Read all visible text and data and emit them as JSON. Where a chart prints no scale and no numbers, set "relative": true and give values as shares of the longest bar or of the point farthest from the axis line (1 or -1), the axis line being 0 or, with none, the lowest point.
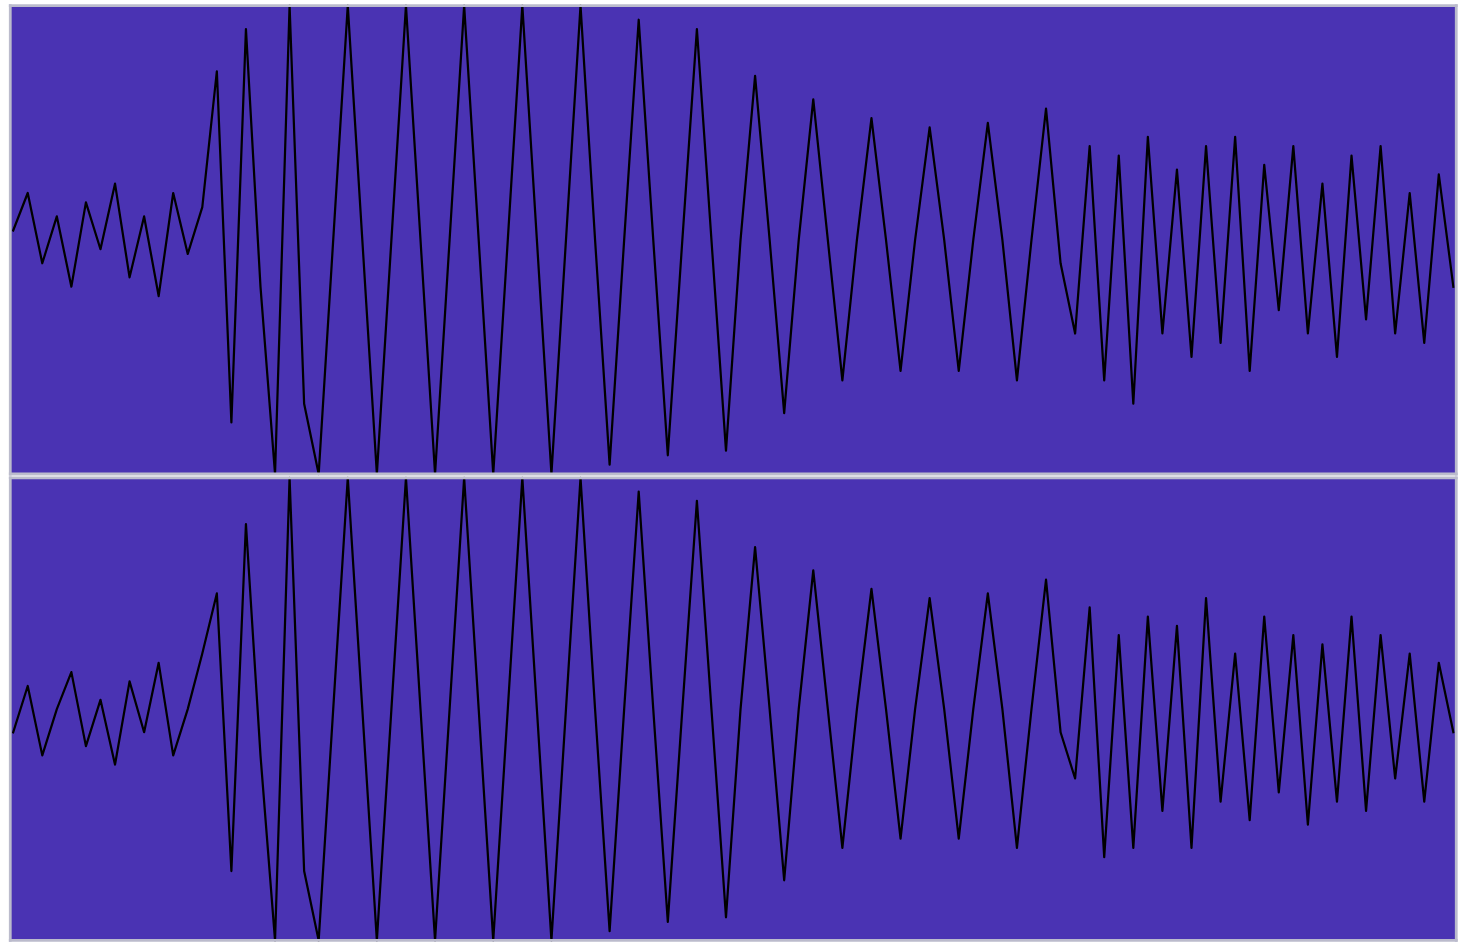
{
  "chart_data": [
    {
      "type": "line",
      "relative": true,
      "categories": [
        null,
        null,
        null,
        null,
        null,
        null,
        null,
        null,
        null,
        null,
        null,
        null,
        null,
        null,
        null,
        null,
        null,
        null,
        null,
        null,
        null,
        null,
        null,
        null,
        null,
        null,
        null,
        null,
        null,
        null,
        null,
        null,
        null,
        null,
        null,
        null,
        null,
        null,
        null,
        null,
        null,
        null,
        null,
        null,
        null,
        null,
        null,
        null,
        null,
        null,
        null,
        null,
        null,
        null,
        null,
        null,
        null,
        null,
        null,
        null,
        null,
        null,
        null,
        null,
        null,
        null,
        null,
        null,
        null,
        null,
        null,
        null,
        null,
        null,
        null,
        null,
        null,
        null,
        null,
        null,
        null,
        null,
        null,
        null,
        null,
        null,
        null,
        null,
        null,
        null,
        null,
        null,
        null,
        null,
        null,
        null,
        null,
        null,
        null,
        null
      ],
      "series": [
        {
          "color": "#000000",
          "values": [
            0.52,
            0.6,
            0.45,
            0.55,
            0.4,
            0.58,
            0.48,
            0.62,
            0.42,
            0.55,
            0.38,
            0.6,
            0.47,
            0.57,
            0.86,
            0.11,
            0.95,
            0.4,
            0.0,
            1.0,
            0.15,
            0.0,
            0.5,
            1.0,
            0.5,
            0.0,
            0.5,
            1.0,
            0.5,
            0.0,
            0.5,
            1.0,
            0.5,
            0.0,
            0.5,
            1.0,
            0.5,
            0.0,
            0.5,
            1.0,
            0.5,
            0.02,
            0.5,
            0.97,
            0.5,
            0.04,
            0.5,
            0.95,
            0.5,
            0.05,
            0.5,
            0.85,
            0.5,
            0.13,
            0.5,
            0.8,
            0.5,
            0.2,
            0.5,
            0.76,
            0.5,
            0.22,
            0.5,
            0.74,
            0.5,
            0.22,
            0.5,
            0.75,
            0.5,
            0.2,
            0.5,
            0.78,
            0.45,
            0.3,
            0.7,
            0.2,
            0.68,
            0.15,
            0.72,
            0.3,
            0.65,
            0.25,
            0.7,
            0.28,
            0.72,
            0.22,
            0.66,
            0.35,
            0.7,
            0.3,
            0.62,
            0.25,
            0.68,
            0.33,
            0.7,
            0.3,
            0.6,
            0.28,
            0.64,
            0.4
          ]
        }
      ]
    },
    {
      "type": "line",
      "relative": true,
      "categories": [
        null,
        null,
        null,
        null,
        null,
        null,
        null,
        null,
        null,
        null,
        null,
        null,
        null,
        null,
        null,
        null,
        null,
        null,
        null,
        null,
        null,
        null,
        null,
        null,
        null,
        null,
        null,
        null,
        null,
        null,
        null,
        null,
        null,
        null,
        null,
        null,
        null,
        null,
        null,
        null,
        null,
        null,
        null,
        null,
        null,
        null,
        null,
        null,
        null,
        null,
        null,
        null,
        null,
        null,
        null,
        null,
        null,
        null,
        null,
        null,
        null,
        null,
        null,
        null,
        null,
        null,
        null,
        null,
        null,
        null,
        null,
        null,
        null,
        null,
        null,
        null,
        null,
        null,
        null,
        null,
        null,
        null,
        null,
        null,
        null,
        null,
        null,
        null,
        null,
        null,
        null,
        null,
        null,
        null,
        null,
        null,
        null,
        null,
        null,
        null
      ],
      "series": [
        {
          "color": "#000000",
          "values": [
            0.45,
            0.55,
            0.4,
            0.5,
            0.58,
            0.42,
            0.52,
            0.38,
            0.56,
            0.45,
            0.6,
            0.4,
            0.5,
            0.62,
            0.75,
            0.15,
            0.9,
            0.4,
            0.0,
            1.0,
            0.15,
            0.0,
            0.5,
            1.0,
            0.5,
            0.0,
            0.5,
            1.0,
            0.5,
            0.0,
            0.5,
            1.0,
            0.5,
            0.0,
            0.5,
            1.0,
            0.5,
            0.0,
            0.5,
            1.0,
            0.5,
            0.02,
            0.5,
            0.97,
            0.5,
            0.04,
            0.5,
            0.95,
            0.5,
            0.05,
            0.5,
            0.85,
            0.5,
            0.13,
            0.5,
            0.8,
            0.5,
            0.2,
            0.5,
            0.76,
            0.5,
            0.22,
            0.5,
            0.74,
            0.5,
            0.22,
            0.5,
            0.75,
            0.5,
            0.2,
            0.5,
            0.78,
            0.45,
            0.35,
            0.72,
            0.18,
            0.66,
            0.2,
            0.7,
            0.28,
            0.68,
            0.2,
            0.74,
            0.3,
            0.62,
            0.26,
            0.7,
            0.32,
            0.66,
            0.25,
            0.64,
            0.3,
            0.7,
            0.28,
            0.66,
            0.35,
            0.62,
            0.3,
            0.6,
            0.45
          ]
        }
      ]
    }
  ]
}
